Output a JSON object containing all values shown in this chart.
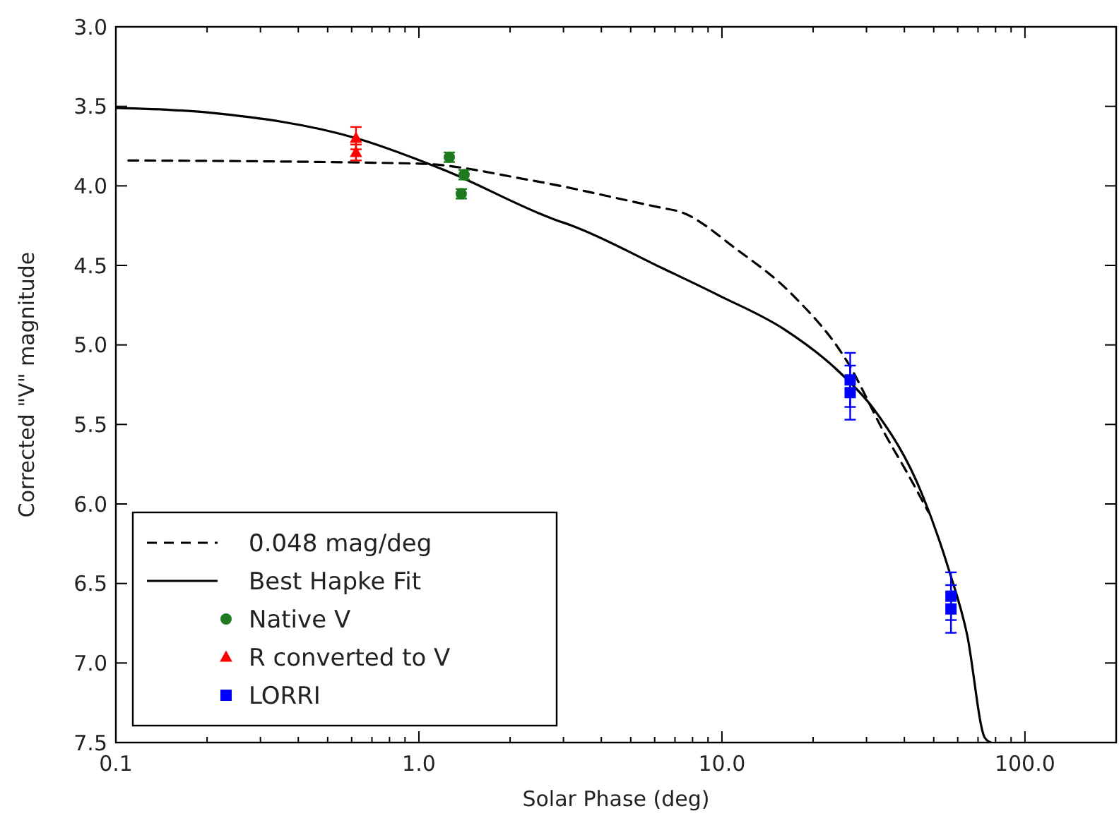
{
  "chart_data": {
    "type": "scatter",
    "xlabel": "Solar Phase (deg)",
    "ylabel": "Corrected \"V\" magnitude",
    "log": "x",
    "legend": "bottom left",
    "grid": false,
    "xlim": [
      0.1,
      200
    ],
    "xticks": [
      0.1,
      {
        "value": 1,
        "label": "1.0"
      },
      {
        "value": 10,
        "label": "10.0"
      },
      {
        "value": 100,
        "label": "100.0"
      }
    ],
    "ylim": [
      7.5,
      3.0
    ],
    "yticks": [
      {
        "value": 3,
        "label": "3.0"
      },
      3.5,
      {
        "value": 4,
        "label": "4.0"
      },
      4.5,
      {
        "value": 5,
        "label": "5.0"
      },
      5.5,
      {
        "value": 6,
        "label": "6.0"
      },
      6.5,
      {
        "value": 7,
        "label": "7.0"
      },
      7.5
    ],
    "series": [
      {
        "name": "0.048 mag/deg",
        "type": "line",
        "line_style": "dashed",
        "marker": "none",
        "color": "#000000",
        "x": [
          0.11,
          1,
          2.27,
          6.4,
          7.2,
          11.2,
          17.2,
          26,
          34.5,
          41.3,
          48
        ],
        "values": [
          3.84,
          3.86,
          3.96,
          4.14,
          4.16,
          4.4,
          4.69,
          5.11,
          5.56,
          5.82,
          6.05
        ]
      },
      {
        "name": "Best Hapke Fit",
        "type": "line",
        "line_style": "solid",
        "marker": "none",
        "color": "#000000",
        "x": [
          0.1,
          0.204,
          0.62,
          1.21,
          2.79,
          3.2,
          6.4,
          9.8,
          16,
          24.4,
          31.6,
          45.8,
          56,
          64.4,
          73.7,
          77
        ],
        "values": [
          3.51,
          3.54,
          3.7,
          3.9,
          4.21,
          4.25,
          4.52,
          4.69,
          4.9,
          5.17,
          5.4,
          5.94,
          6.41,
          6.82,
          7.47,
          7.5
        ]
      },
      {
        "name": "Native V",
        "marker": "circle",
        "color": "#1f7a1f",
        "x": [
          1.26,
          1.41,
          1.38
        ],
        "values": [
          3.82,
          3.93,
          4.05
        ],
        "errors": [
          0.03,
          0.03,
          0.03
        ]
      },
      {
        "name": "R converted to V",
        "marker": "triangle",
        "color": "#ff0000",
        "x": [
          0.62,
          0.62
        ],
        "values": [
          3.7,
          3.79
        ],
        "errors": [
          0.07,
          0.05
        ]
      },
      {
        "name": "LORRI",
        "marker": "square",
        "color": "#0000ff",
        "x": [
          26.5,
          26.5,
          57,
          57
        ],
        "values": [
          5.22,
          5.3,
          6.58,
          6.66
        ],
        "errors": [
          0.17,
          0.17,
          0.15,
          0.15
        ]
      }
    ]
  }
}
